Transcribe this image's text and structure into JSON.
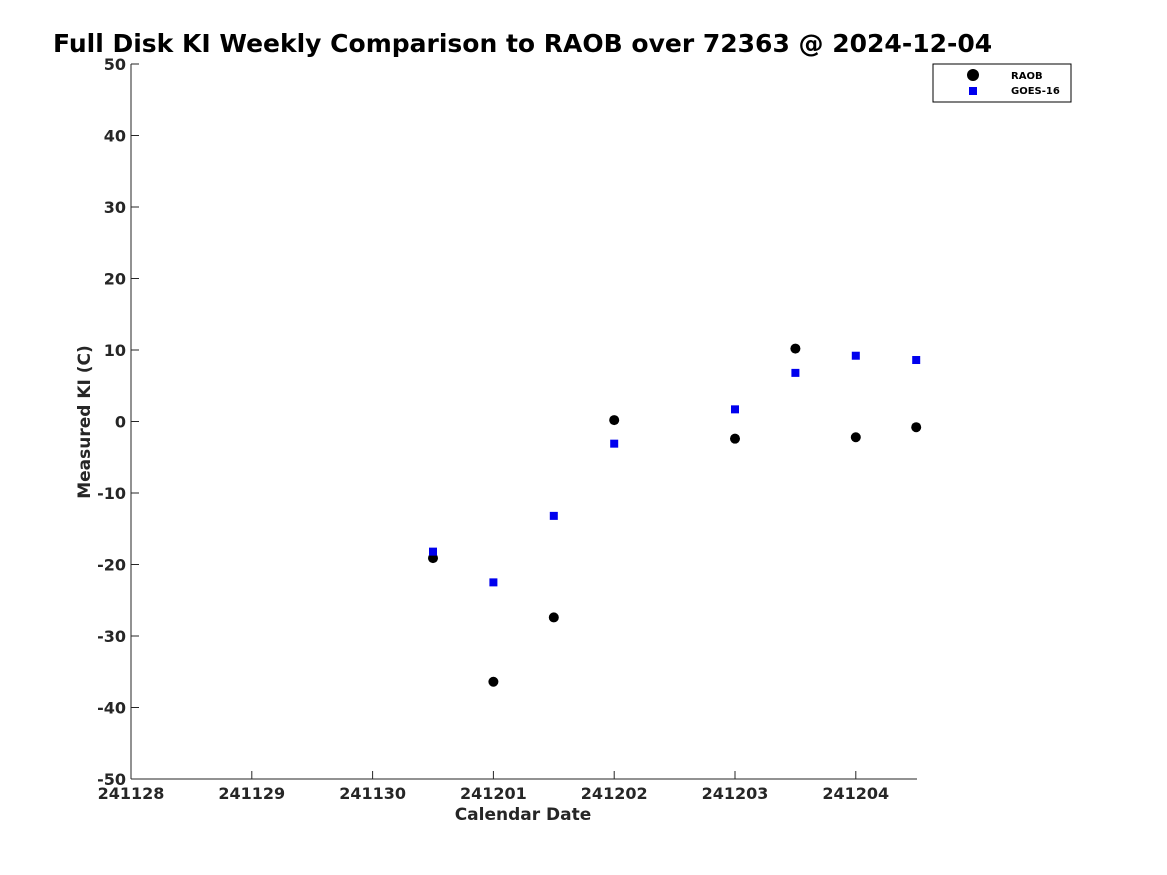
{
  "chart_data": {
    "type": "scatter",
    "title": "Full Disk KI Weekly Comparison to RAOB over 72363 @ 2024-12-04",
    "xlabel": "Calendar Date",
    "ylabel": "Measured KI (C)",
    "x_ticks": [
      "241128",
      "241129",
      "241130",
      "241201",
      "241202",
      "241203",
      "241204"
    ],
    "y_ticks": [
      50,
      40,
      30,
      20,
      10,
      0,
      -10,
      -20,
      -30,
      -40,
      -50
    ],
    "ylim": [
      -50,
      50
    ],
    "grid": false,
    "legend_position": "top-right",
    "series": [
      {
        "name": "RAOB",
        "marker": "circle",
        "color": "#000000",
        "points": [
          {
            "date": "2024-11-30 12Z",
            "value": -19.1
          },
          {
            "date": "2024-12-01 00Z",
            "value": -36.4
          },
          {
            "date": "2024-12-01 12Z",
            "value": -27.4
          },
          {
            "date": "2024-12-02 00Z",
            "value": 0.2
          },
          {
            "date": "2024-12-03 00Z",
            "value": -2.4
          },
          {
            "date": "2024-12-03 12Z",
            "value": 10.2
          },
          {
            "date": "2024-12-04 00Z",
            "value": -2.2
          },
          {
            "date": "2024-12-04 12Z",
            "value": -0.8
          }
        ]
      },
      {
        "name": "GOES-16",
        "marker": "square",
        "color": "#0000ee",
        "points": [
          {
            "date": "2024-11-30 12Z",
            "value": -18.2
          },
          {
            "date": "2024-12-01 00Z",
            "value": -22.5
          },
          {
            "date": "2024-12-01 12Z",
            "value": -13.2
          },
          {
            "date": "2024-12-02 00Z",
            "value": -3.1
          },
          {
            "date": "2024-12-03 00Z",
            "value": 1.7
          },
          {
            "date": "2024-12-03 12Z",
            "value": 6.8
          },
          {
            "date": "2024-12-04 00Z",
            "value": 9.2
          },
          {
            "date": "2024-12-04 12Z",
            "value": 8.6
          }
        ]
      }
    ]
  }
}
